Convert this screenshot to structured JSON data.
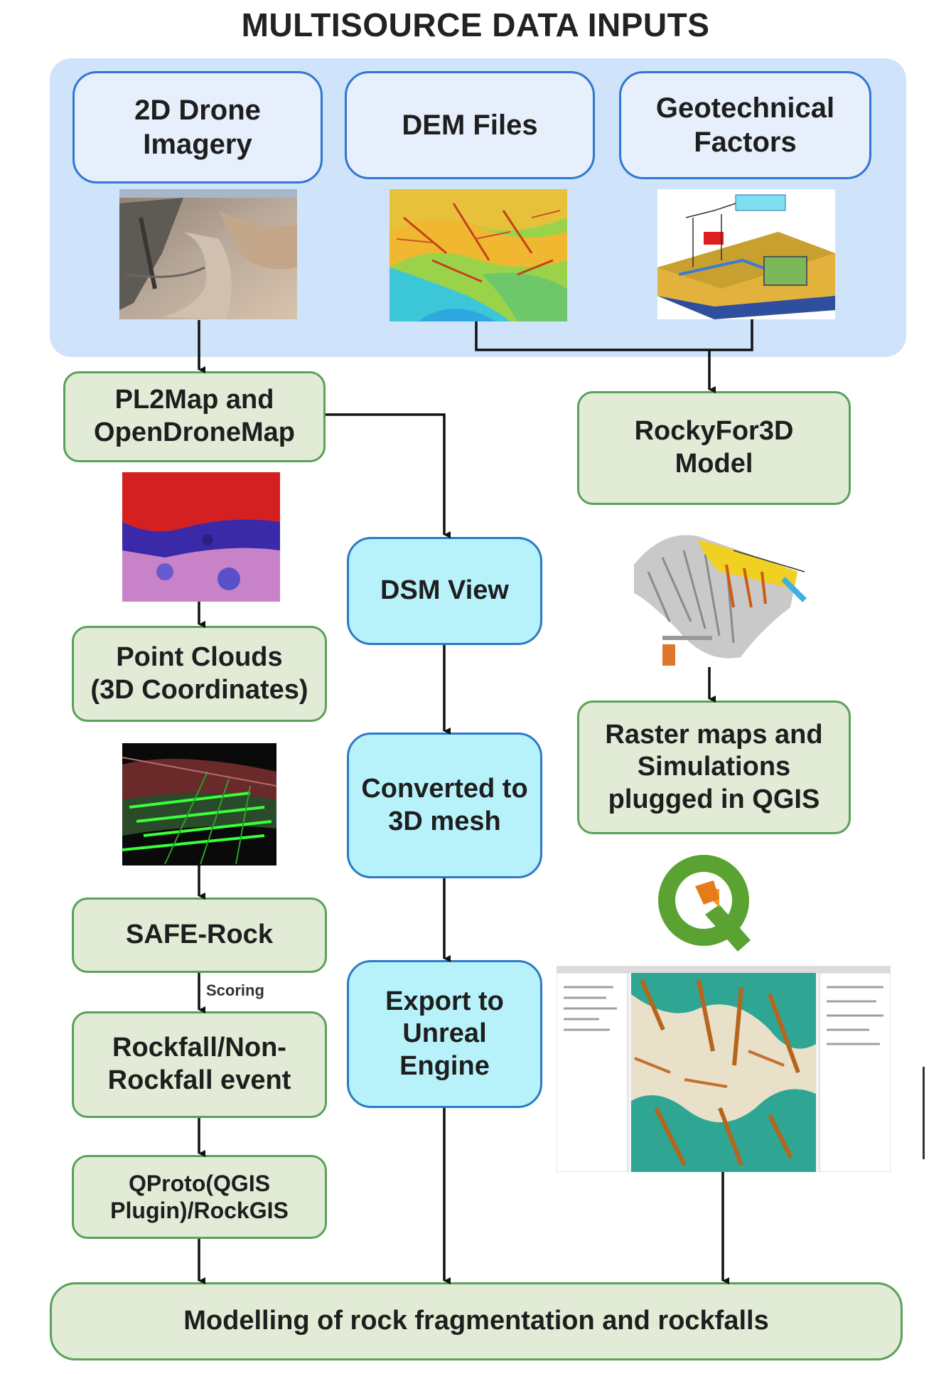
{
  "header": {
    "title": "MULTISOURCE DATA INPUTS"
  },
  "sources": {
    "drone": "2D Drone\nImagery",
    "dem": "DEM Files",
    "geo": "Geotechnical\nFactors"
  },
  "left_column": {
    "pl2map": "PL2Map and\nOpenDroneMap",
    "point_clouds": "Point Clouds\n(3D Coordinates)",
    "safe_rock": "SAFE-Rock",
    "scoring_label": "Scoring",
    "rockfall_event": "Rockfall/Non-\nRockfall event",
    "qproto": "QProto(QGIS\nPlugin)/RockGIS"
  },
  "middle_column": {
    "dsm_view": "DSM View",
    "mesh": "Converted to\n3D mesh",
    "unreal": "Export to\nUnreal\nEngine"
  },
  "right_column": {
    "rockyfor3d": "RockyFor3D\nModel",
    "raster": "Raster maps and\nSimulations\nplugged in QGIS"
  },
  "output": {
    "label": "Modelling of rock fragmentation and rockfalls"
  },
  "colors": {
    "panel_bg": "#cfe3fa",
    "source_border": "#2f77d0",
    "green_fill": "#e2ebd6",
    "green_border": "#5aa15a",
    "cyan_fill": "#b7f2fb",
    "arrow": "#111111"
  }
}
